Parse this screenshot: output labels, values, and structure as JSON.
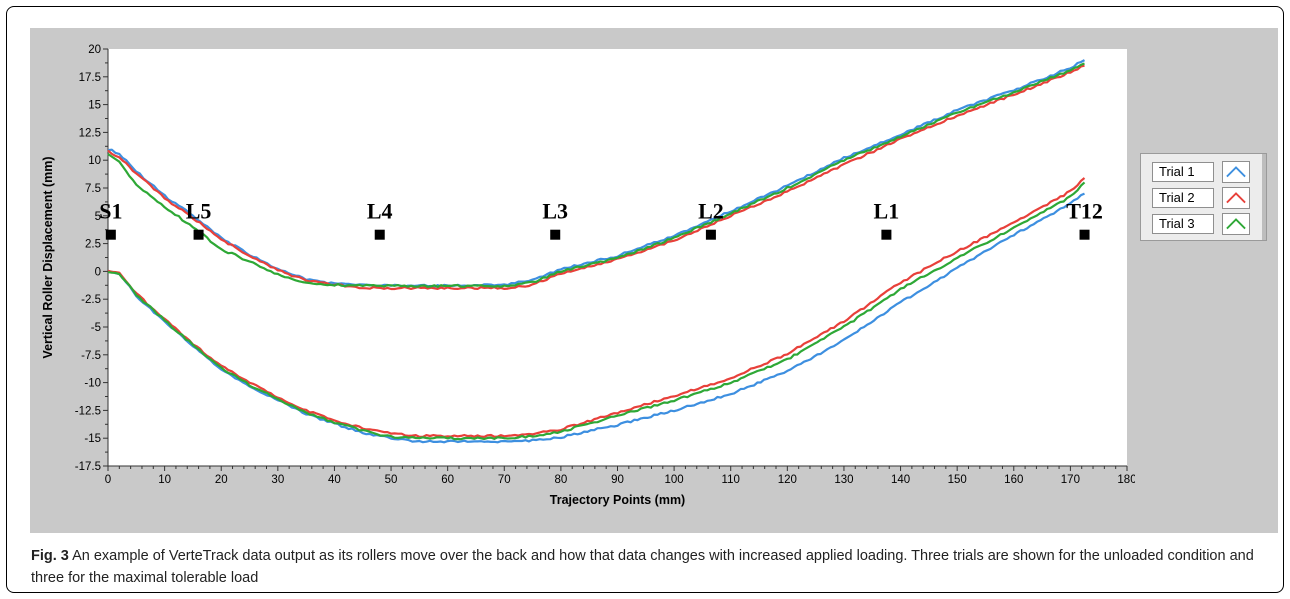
{
  "chart_data": {
    "type": "line",
    "xlabel": "Trajectory Points (mm)",
    "ylabel": "Vertical Roller Displacement (mm)",
    "xlim": [
      0,
      180
    ],
    "ylim": [
      -17.5,
      20
    ],
    "x_ticks": [
      "0",
      "10",
      "20",
      "30",
      "40",
      "50",
      "60",
      "70",
      "80",
      "90",
      "100",
      "110",
      "120",
      "130",
      "140",
      "150",
      "160",
      "170",
      "180"
    ],
    "y_ticks": [
      "20",
      "17.5",
      "15",
      "12.5",
      "10",
      "7.5",
      "5",
      "2.5",
      "0",
      "-2.5",
      "-5",
      "-7.5",
      "-10",
      "-12.5",
      "-15",
      "-17.5"
    ],
    "grid": false,
    "legend_position": "right",
    "legend": [
      {
        "label": "Trial 1",
        "color": "#3d8fe0"
      },
      {
        "label": "Trial 2",
        "color": "#e8403a"
      },
      {
        "label": "Trial 3",
        "color": "#2ea836"
      }
    ],
    "annotations": [
      {
        "label": "S1",
        "x": 0.5,
        "y": 3.3
      },
      {
        "label": "L5",
        "x": 16,
        "y": 3.3
      },
      {
        "label": "L4",
        "x": 48,
        "y": 3.3
      },
      {
        "label": "L3",
        "x": 79,
        "y": 3.3
      },
      {
        "label": "L2",
        "x": 106.5,
        "y": 3.3
      },
      {
        "label": "L1",
        "x": 137.5,
        "y": 3.3
      },
      {
        "label": "T12",
        "x": 172.5,
        "y": 3.3
      }
    ],
    "series": [
      {
        "name": "Trial 1",
        "group": "unloaded",
        "color": "#3d8fe0",
        "x": [
          0,
          2,
          5,
          10,
          15,
          20,
          25,
          30,
          35,
          40,
          45,
          50,
          60,
          70,
          75,
          80,
          90,
          100,
          110,
          120,
          130,
          140,
          150,
          160,
          170,
          172.5
        ],
        "y": [
          11,
          10.6,
          9,
          6.8,
          5,
          3,
          1.5,
          0.2,
          -0.7,
          -1.1,
          -1.2,
          -1.3,
          -1.3,
          -1.2,
          -0.8,
          0.2,
          1.4,
          3.2,
          5.4,
          7.7,
          10.2,
          12.3,
          14.5,
          16.3,
          18.3,
          19
        ]
      },
      {
        "name": "Trial 2",
        "group": "unloaded",
        "color": "#e8403a",
        "x": [
          0,
          2,
          5,
          10,
          15,
          20,
          25,
          30,
          35,
          40,
          45,
          50,
          60,
          70,
          75,
          80,
          90,
          100,
          110,
          120,
          130,
          140,
          150,
          160,
          170,
          172.5
        ],
        "y": [
          10.8,
          10.3,
          8.8,
          6.6,
          4.8,
          2.9,
          1.4,
          0.1,
          -0.8,
          -1.2,
          -1.5,
          -1.5,
          -1.5,
          -1.5,
          -1.2,
          -0.2,
          1.1,
          2.8,
          5,
          7.2,
          9.6,
          11.9,
          14,
          15.9,
          17.9,
          18.5
        ]
      },
      {
        "name": "Trial 3",
        "group": "unloaded",
        "color": "#2ea836",
        "x": [
          0,
          2,
          5,
          10,
          15,
          20,
          25,
          30,
          35,
          40,
          45,
          50,
          60,
          70,
          75,
          80,
          90,
          100,
          110,
          120,
          130,
          140,
          150,
          160,
          170,
          172.5
        ],
        "y": [
          10.5,
          9.8,
          7.8,
          5.8,
          4,
          2,
          0.9,
          -0.3,
          -1,
          -1.2,
          -1.3,
          -1.3,
          -1.3,
          -1.3,
          -1,
          0,
          1.2,
          3,
          5.2,
          7.5,
          10,
          12.1,
          14.3,
          16.1,
          18.1,
          18.7
        ]
      },
      {
        "name": "Trial 1",
        "group": "loaded",
        "color": "#3d8fe0",
        "x": [
          0,
          2,
          5,
          10,
          15,
          20,
          25,
          30,
          35,
          40,
          45,
          50,
          55,
          60,
          70,
          75,
          80,
          90,
          100,
          110,
          120,
          130,
          140,
          150,
          160,
          170,
          172.5
        ],
        "y": [
          0,
          -0.2,
          -2.2,
          -4.5,
          -6.7,
          -8.8,
          -10.3,
          -11.6,
          -12.8,
          -13.7,
          -14.5,
          -15,
          -15.3,
          -15.3,
          -15.3,
          -15.2,
          -14.9,
          -13.8,
          -12.5,
          -11,
          -9,
          -6.2,
          -2.8,
          0.3,
          3.3,
          6.1,
          7
        ]
      },
      {
        "name": "Trial 2",
        "group": "loaded",
        "color": "#e8403a",
        "x": [
          0,
          2,
          5,
          10,
          15,
          20,
          25,
          30,
          35,
          40,
          45,
          50,
          55,
          60,
          70,
          75,
          80,
          90,
          100,
          110,
          120,
          130,
          140,
          150,
          160,
          170,
          172.5
        ],
        "y": [
          0,
          -0.2,
          -2,
          -4.3,
          -6.5,
          -8.5,
          -10,
          -11.3,
          -12.5,
          -13.4,
          -14.1,
          -14.6,
          -14.8,
          -14.8,
          -14.8,
          -14.6,
          -14.2,
          -12.7,
          -11.2,
          -9.6,
          -7.4,
          -4.5,
          -1,
          1.8,
          4.4,
          7.2,
          8.4
        ]
      },
      {
        "name": "Trial 3",
        "group": "loaded",
        "color": "#2ea836",
        "x": [
          0,
          2,
          5,
          10,
          15,
          20,
          25,
          30,
          35,
          40,
          45,
          50,
          55,
          60,
          70,
          75,
          80,
          90,
          100,
          110,
          120,
          130,
          140,
          150,
          160,
          170,
          172.5
        ],
        "y": [
          0,
          -0.2,
          -2.1,
          -4.4,
          -6.6,
          -8.7,
          -10.2,
          -11.5,
          -12.7,
          -13.6,
          -14.3,
          -14.9,
          -15,
          -15,
          -15,
          -14.8,
          -14.4,
          -13,
          -11.6,
          -10,
          -7.9,
          -5,
          -1.6,
          1.2,
          3.9,
          6.7,
          8
        ]
      }
    ]
  },
  "caption": {
    "prefix": "Fig. 3",
    "text": " An example of VerteTrack data output as its rollers move over the back and how that data changes with increased applied loading. Three trials are shown for the unloaded condition and three for the maximal tolerable load"
  }
}
